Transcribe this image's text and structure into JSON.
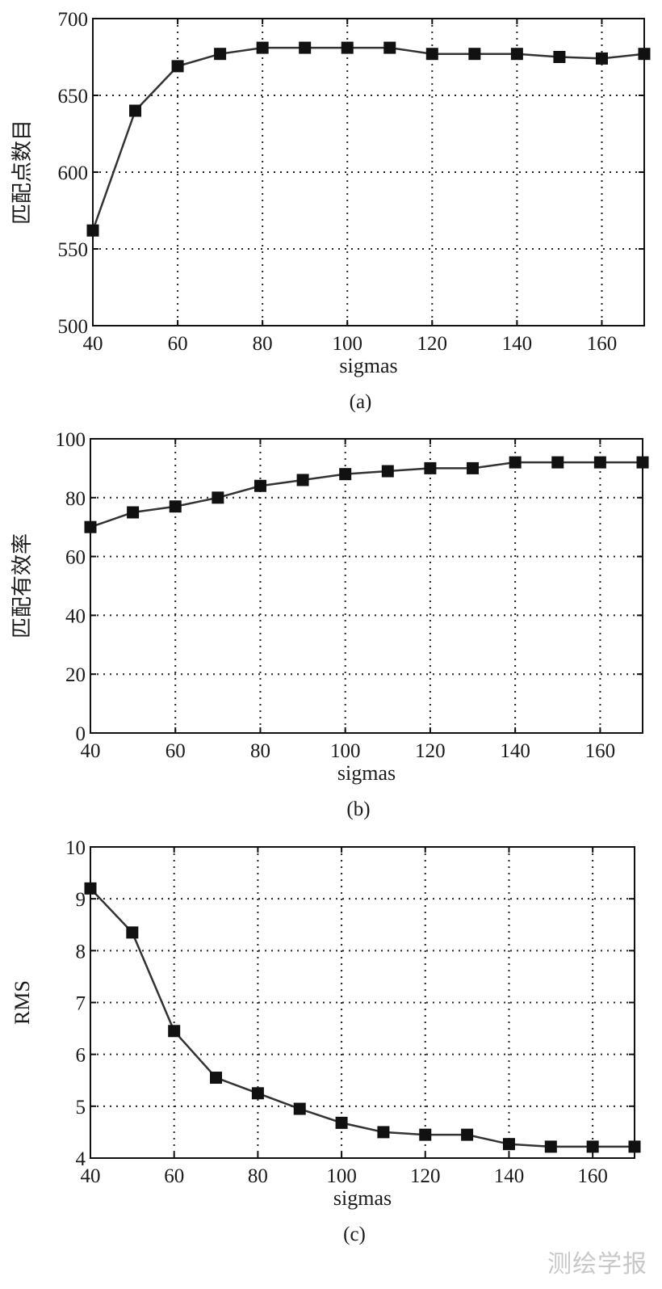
{
  "watermark": "测绘学报",
  "chart_data": [
    {
      "type": "line",
      "caption": "(a)",
      "xlabel": "sigmas",
      "ylabel": "匹配点数目",
      "xlim": [
        40,
        170
      ],
      "ylim": [
        500,
        700
      ],
      "xticks": [
        40,
        60,
        80,
        100,
        120,
        140,
        160
      ],
      "yticks": [
        500,
        550,
        600,
        650,
        700
      ],
      "grid": true,
      "marker": "square",
      "x": [
        40,
        50,
        60,
        70,
        80,
        90,
        100,
        110,
        120,
        130,
        140,
        150,
        160,
        170
      ],
      "y": [
        562,
        640,
        669,
        677,
        681,
        681,
        681,
        681,
        677,
        677,
        677,
        675,
        674,
        677
      ]
    },
    {
      "type": "line",
      "caption": "(b)",
      "xlabel": "sigmas",
      "ylabel": "匹配有效率",
      "xlim": [
        40,
        170
      ],
      "ylim": [
        0,
        100
      ],
      "xticks": [
        40,
        60,
        80,
        100,
        120,
        140,
        160
      ],
      "yticks": [
        0,
        20,
        40,
        60,
        80,
        100
      ],
      "grid": true,
      "marker": "square",
      "x": [
        40,
        50,
        60,
        70,
        80,
        90,
        100,
        110,
        120,
        130,
        140,
        150,
        160,
        170
      ],
      "y": [
        70,
        75,
        77,
        80,
        84,
        86,
        88,
        89,
        90,
        90,
        92,
        92,
        92,
        92
      ]
    },
    {
      "type": "line",
      "caption": "(c)",
      "xlabel": "sigmas",
      "ylabel": "RMS",
      "xlim": [
        40,
        170
      ],
      "ylim": [
        4,
        10
      ],
      "xticks": [
        40,
        60,
        80,
        100,
        120,
        140,
        160
      ],
      "yticks": [
        4,
        5,
        6,
        7,
        8,
        9,
        10
      ],
      "grid": true,
      "marker": "square",
      "x": [
        40,
        50,
        60,
        70,
        80,
        90,
        100,
        110,
        120,
        130,
        140,
        150,
        160,
        170
      ],
      "y": [
        9.2,
        8.35,
        6.45,
        5.55,
        5.25,
        4.95,
        4.68,
        4.5,
        4.45,
        4.45,
        4.27,
        4.22,
        4.22,
        4.22
      ]
    }
  ]
}
